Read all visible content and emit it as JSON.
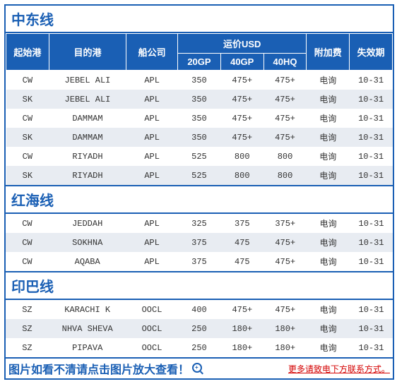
{
  "colors": {
    "primary": "#1a5fb4",
    "alt_row": "#e8ecf2",
    "footer_red": "#d40000"
  },
  "columns": {
    "origin": "起始港",
    "dest": "目的港",
    "carrier": "船公司",
    "rate_group": "运价USD",
    "r20": "20GP",
    "r40": "40GP",
    "r40hq": "40HQ",
    "surcharge": "附加费",
    "expiry": "失效期"
  },
  "col_widths": [
    "50",
    "90",
    "60",
    "50",
    "50",
    "50",
    "50",
    "50"
  ],
  "sections": [
    {
      "title": "中东线",
      "rows": [
        [
          "CW",
          "JEBEL ALI",
          "APL",
          "350",
          "475+",
          "475+",
          "电询",
          "10-31"
        ],
        [
          "SK",
          "JEBEL ALI",
          "APL",
          "350",
          "475+",
          "475+",
          "电询",
          "10-31"
        ],
        [
          "CW",
          "DAMMAM",
          "APL",
          "350",
          "475+",
          "475+",
          "电询",
          "10-31"
        ],
        [
          "SK",
          "DAMMAM",
          "APL",
          "350",
          "475+",
          "475+",
          "电询",
          "10-31"
        ],
        [
          "CW",
          "RIYADH",
          "APL",
          "525",
          "800",
          "800",
          "电询",
          "10-31"
        ],
        [
          "SK",
          "RIYADH",
          "APL",
          "525",
          "800",
          "800",
          "电询",
          "10-31"
        ]
      ]
    },
    {
      "title": "红海线",
      "rows": [
        [
          "CW",
          "JEDDAH",
          "APL",
          "325",
          "375",
          "375+",
          "电询",
          "10-31"
        ],
        [
          "CW",
          "SOKHNA",
          "APL",
          "375",
          "475",
          "475+",
          "电询",
          "10-31"
        ],
        [
          "CW",
          "AQABA",
          "APL",
          "375",
          "475",
          "475+",
          "电询",
          "10-31"
        ]
      ]
    },
    {
      "title": "印巴线",
      "rows": [
        [
          "SZ",
          "KARACHI K",
          "OOCL",
          "400",
          "475+",
          "475+",
          "电询",
          "10-31"
        ],
        [
          "SZ",
          "NHVA SHEVA",
          "OOCL",
          "250",
          "180+",
          "180+",
          "电询",
          "10-31"
        ],
        [
          "SZ",
          "PIPAVA",
          "OOCL",
          "250",
          "180+",
          "180+",
          "电询",
          "10-31"
        ]
      ]
    }
  ],
  "footer": {
    "left": "图片如看不清请点击图片放大查看！",
    "right": "更多请致电下方联系方式。"
  }
}
